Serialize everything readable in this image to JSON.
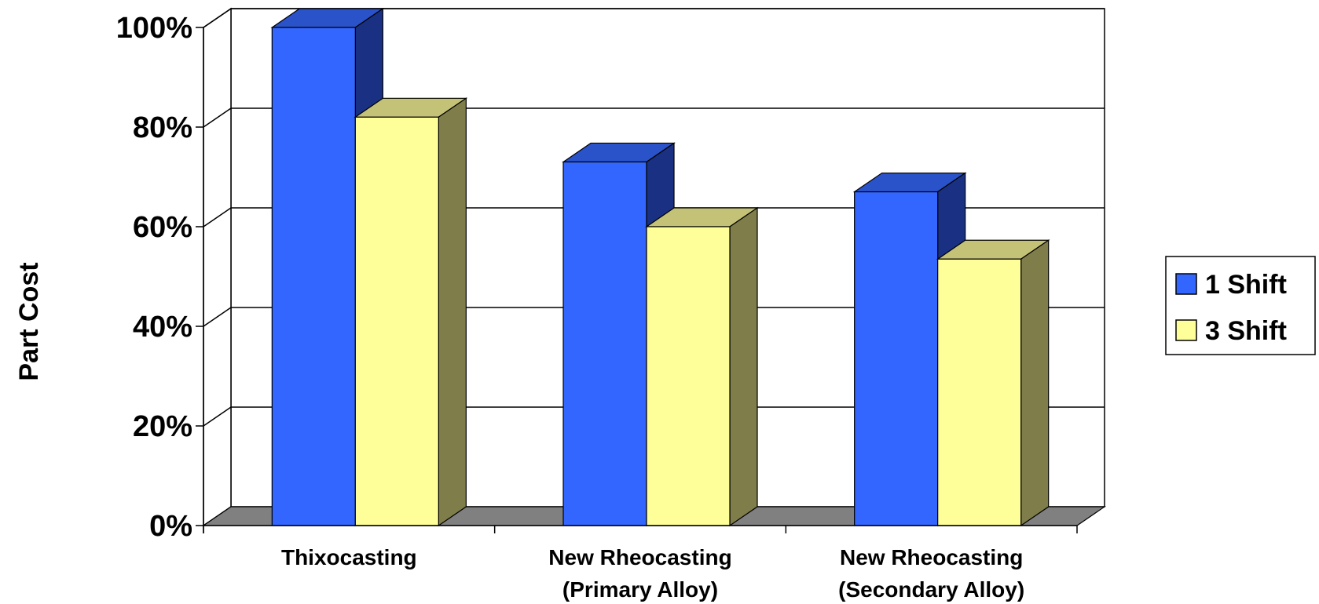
{
  "chart_data": {
    "type": "bar",
    "categories": [
      [
        "Thixocasting"
      ],
      [
        "New Rheocasting",
        "(Primary Alloy)"
      ],
      [
        "New Rheocasting",
        "(Secondary Alloy)"
      ]
    ],
    "series": [
      {
        "name": "1 Shift",
        "values": [
          100,
          73,
          67
        ]
      },
      {
        "name": "3 Shift",
        "values": [
          82,
          60,
          53.5
        ]
      }
    ],
    "ylabel": "Part Cost",
    "xlabel": "",
    "title": "",
    "ylim": [
      0,
      100
    ],
    "yticks": [
      "0%",
      "20%",
      "40%",
      "60%",
      "80%",
      "100%"
    ],
    "grid": true,
    "legend_position": "right",
    "three_d": true,
    "colors": {
      "series_front": [
        "#3366ff",
        "#ffff99"
      ],
      "series_top": [
        "#2a52c9",
        "#c4c277"
      ],
      "series_side": [
        "#1a3183",
        "#7f7d4a"
      ],
      "floor": "#808080",
      "grid": "#000000"
    }
  }
}
